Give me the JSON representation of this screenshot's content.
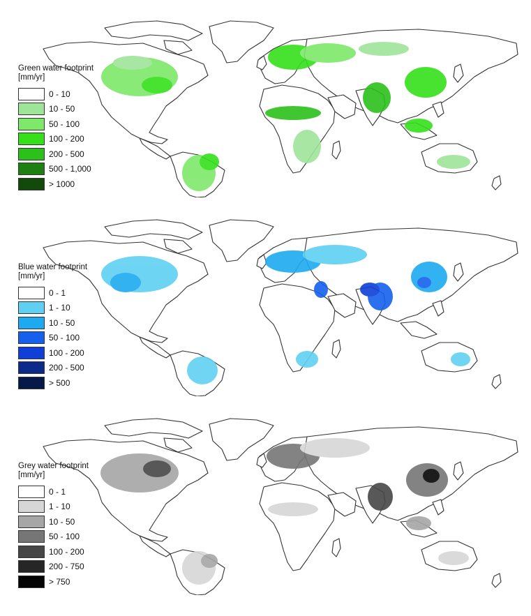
{
  "panels": [
    {
      "id": "green",
      "legend_title_line1": "Green water footprint",
      "legend_unit": "[mm/yr]",
      "classes": [
        {
          "label": "0 - 10",
          "color": "#ffffff"
        },
        {
          "label": "10 - 50",
          "color": "#9ee59a"
        },
        {
          "label": "50 - 100",
          "color": "#7ee86a"
        },
        {
          "label": "100 - 200",
          "color": "#35e01a"
        },
        {
          "label": "200 - 500",
          "color": "#2cc01a"
        },
        {
          "label": "500 - 1,000",
          "color": "#1e7f12"
        },
        {
          "label": "> 1000",
          "color": "#114a0b"
        }
      ]
    },
    {
      "id": "blue",
      "legend_title_line1": "Blue water footprint",
      "legend_unit": "[mm/yr]",
      "classes": [
        {
          "label": "0 - 1",
          "color": "#ffffff"
        },
        {
          "label": "1 - 10",
          "color": "#5fd0f2"
        },
        {
          "label": "10 - 50",
          "color": "#1eaaf0"
        },
        {
          "label": "50 - 100",
          "color": "#1660ee"
        },
        {
          "label": "100 - 200",
          "color": "#0f3fd6"
        },
        {
          "label": "200 - 500",
          "color": "#0b2a8a"
        },
        {
          "label": "> 500",
          "color": "#061a4a"
        }
      ]
    },
    {
      "id": "grey",
      "legend_title_line1": "Grey water footprint",
      "legend_unit": "[mm/yr]",
      "classes": [
        {
          "label": "0 - 1",
          "color": "#ffffff"
        },
        {
          "label": "1 - 10",
          "color": "#d6d6d6"
        },
        {
          "label": "10 - 50",
          "color": "#a6a6a6"
        },
        {
          "label": "50 - 100",
          "color": "#767676"
        },
        {
          "label": "100 - 200",
          "color": "#464646"
        },
        {
          "label": "200 - 750",
          "color": "#262626"
        },
        {
          "label": "> 750",
          "color": "#050505"
        }
      ]
    }
  ]
}
